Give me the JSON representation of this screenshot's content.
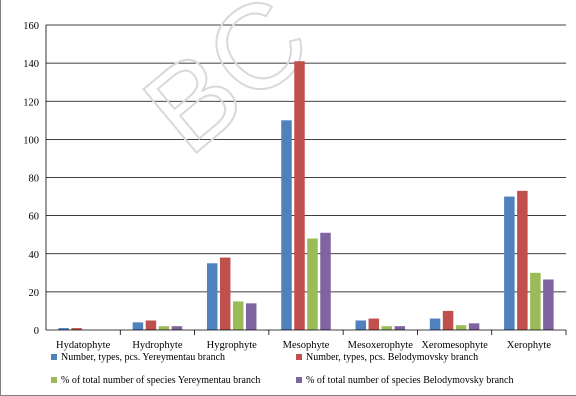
{
  "chart_data": {
    "type": "bar",
    "title": "",
    "xlabel": "",
    "ylabel": "",
    "ylim": [
      0,
      160
    ],
    "yticks": [
      0,
      20,
      40,
      60,
      80,
      100,
      120,
      140,
      160
    ],
    "grid": true,
    "legend_position": "bottom",
    "watermark": "BC",
    "categories": [
      "Hydatophyte",
      "Hydrophyte",
      "Hygrophyte",
      "Mesophyte",
      "Mesoxerophyte",
      "Xeromesophyte",
      "Xerophyte"
    ],
    "series": [
      {
        "name": "Number, types, pcs. Yereymentau branch",
        "color": "#4f81bd",
        "values": [
          1,
          4,
          35,
          110,
          5,
          6,
          70
        ]
      },
      {
        "name": "Number, types, pcs. Belodymovsky branch",
        "color": "#c0504d",
        "values": [
          1,
          5,
          38,
          141,
          6,
          10,
          73
        ]
      },
      {
        "name": "% of total number of species Yereymentau branch",
        "color": "#9bbb59",
        "values": [
          0,
          2,
          15,
          48,
          2,
          2.5,
          30
        ]
      },
      {
        "name": "% of total number of species Belodymovsky branch",
        "color": "#8064a2",
        "values": [
          0,
          2,
          14,
          51,
          2,
          3.5,
          26.5
        ]
      }
    ]
  }
}
